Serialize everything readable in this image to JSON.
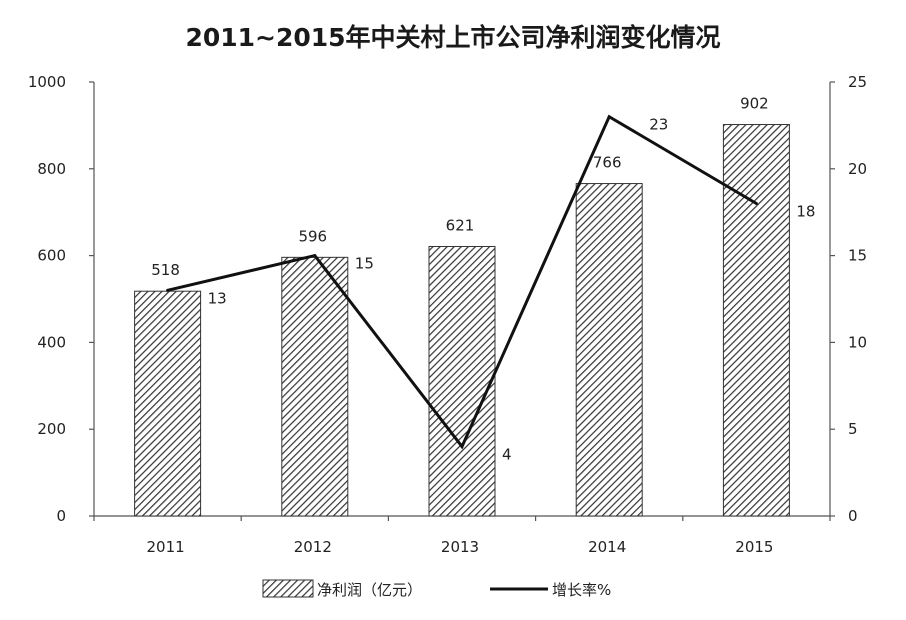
{
  "chart_data": {
    "type": "bar",
    "title": "2011~2015年中关村上市公司净利润变化情况",
    "categories": [
      "2011",
      "2012",
      "2013",
      "2014",
      "2015"
    ],
    "series": [
      {
        "name": "净利润（亿元）",
        "type": "bar",
        "axis": "left",
        "values": [
          518,
          596,
          621,
          766,
          902
        ],
        "pattern": "diagonal-hatch"
      },
      {
        "name": "增长率%",
        "type": "line",
        "axis": "right",
        "values": [
          13,
          15,
          4,
          23,
          18
        ]
      }
    ],
    "y_left": {
      "min": 0,
      "max": 1000,
      "ticks": [
        "0",
        "200",
        "400",
        "600",
        "800",
        "1000"
      ]
    },
    "y_right": {
      "min": 0,
      "max": 25,
      "ticks": [
        "0",
        "5",
        "10",
        "15",
        "20",
        "25"
      ]
    },
    "xlabel": "",
    "ylabel": "",
    "grid": false,
    "legend_position": "bottom",
    "colors": {
      "bar_fill": "#ffffff",
      "bar_hatch": "#333333",
      "bar_stroke": "#333333",
      "line": "#111111",
      "axis": "#555555"
    }
  }
}
